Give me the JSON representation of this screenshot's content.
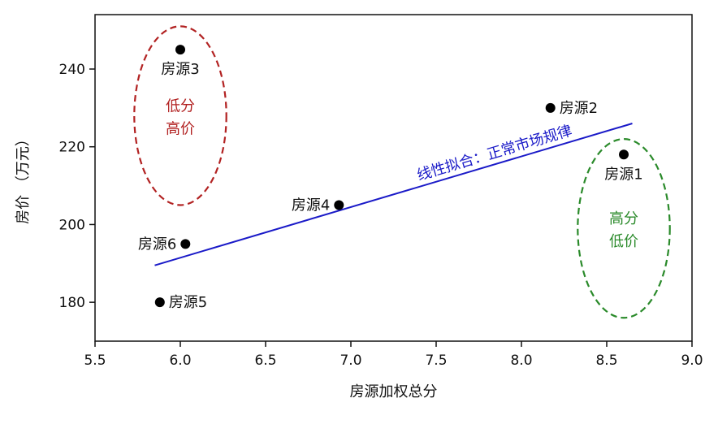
{
  "chart_data": {
    "type": "scatter",
    "xlabel": "房源加权总分",
    "ylabel": "房价 （万元）",
    "xlim": [
      5.5,
      9.0
    ],
    "ylim": [
      170,
      254
    ],
    "x_ticks": [
      5.5,
      6.0,
      6.5,
      7.0,
      7.5,
      8.0,
      8.5,
      9.0
    ],
    "x_tick_labels": [
      "5.5",
      "6.0",
      "6.5",
      "7.0",
      "7.5",
      "8.0",
      "8.5",
      "9.0"
    ],
    "y_ticks": [
      180,
      200,
      220,
      240
    ],
    "y_tick_labels": [
      "180",
      "200",
      "220",
      "240"
    ],
    "grid": false,
    "points": [
      {
        "label": "房源1",
        "x": 8.6,
        "y": 218,
        "label_pos": "below"
      },
      {
        "label": "房源2",
        "x": 8.17,
        "y": 230,
        "label_pos": "right"
      },
      {
        "label": "房源3",
        "x": 6.0,
        "y": 245,
        "label_pos": "below"
      },
      {
        "label": "房源4",
        "x": 6.93,
        "y": 205,
        "label_pos": "left"
      },
      {
        "label": "房源5",
        "x": 5.88,
        "y": 180,
        "label_pos": "right"
      },
      {
        "label": "房源6",
        "x": 6.03,
        "y": 195,
        "label_pos": "left"
      }
    ],
    "fit_line": {
      "label": "线性拟合：正常市场规律",
      "x": [
        5.85,
        8.65
      ],
      "y": [
        189.5,
        226
      ],
      "color": "#1a1ac8"
    },
    "annotations": [
      {
        "lines": [
          "低分",
          "高价"
        ],
        "color": "#b22222",
        "cx": 6.0,
        "cy": 228,
        "rx": 0.27,
        "ry": 23
      },
      {
        "lines": [
          "高分",
          "低价"
        ],
        "color": "#2a8a2a",
        "cx": 8.6,
        "cy": 199,
        "rx": 0.27,
        "ry": 23
      }
    ],
    "point_color": "#000000"
  }
}
